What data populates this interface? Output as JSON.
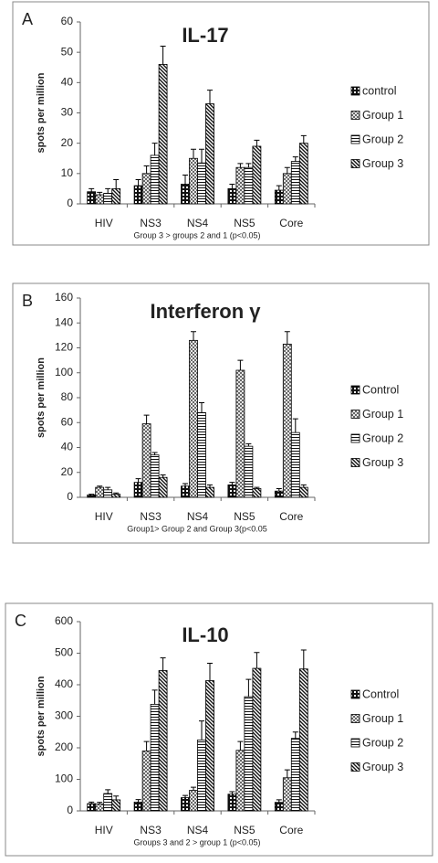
{
  "chart_data": [
    {
      "type": "bar",
      "panel": "A",
      "title": "IL-17",
      "y_label": "spots per million",
      "note": "Group 3 > groups 2 and 1 (p<0.05)",
      "categories": [
        "HIV",
        "NS3",
        "NS4",
        "NS5",
        "Core"
      ],
      "ylim": [
        0,
        60
      ],
      "yticks": [
        0,
        10,
        20,
        30,
        40,
        50,
        60
      ],
      "series": [
        {
          "name": "control",
          "color": "#000000",
          "values": [
            4,
            6,
            6.5,
            5,
            4.5
          ],
          "errors": [
            1,
            2,
            3,
            1.5,
            1.5
          ]
        },
        {
          "name": "Group 1",
          "color": "#000000",
          "values": [
            3,
            10,
            15,
            12,
            10
          ],
          "errors": [
            0.8,
            2.5,
            3,
            1.3,
            2
          ]
        },
        {
          "name": "Group 2",
          "color": "#000000",
          "values": [
            3.5,
            16,
            13.5,
            12,
            14
          ],
          "errors": [
            1.5,
            4,
            4.5,
            1.3,
            1.5
          ]
        },
        {
          "name": "Group 3",
          "color": "#000000",
          "values": [
            5,
            46,
            33,
            19,
            20
          ],
          "errors": [
            3,
            6,
            4.5,
            2,
            2.5
          ]
        }
      ]
    },
    {
      "type": "bar",
      "panel": "B",
      "title": "Interferon γ",
      "y_label": "spots per million",
      "note": "Group1> Group 2 and Group 3(p<0.05",
      "categories": [
        "HIV",
        "NS3",
        "NS4",
        "NS5",
        "Core"
      ],
      "ylim": [
        0,
        160
      ],
      "yticks": [
        0,
        20,
        40,
        60,
        80,
        100,
        120,
        140,
        160
      ],
      "series": [
        {
          "name": "Control",
          "color": "#000000",
          "values": [
            2,
            12,
            9,
            10,
            5
          ],
          "errors": [
            0.5,
            3,
            2,
            2,
            2
          ]
        },
        {
          "name": "Group 1",
          "color": "#000000",
          "values": [
            8,
            59,
            126,
            102,
            123
          ],
          "errors": [
            1,
            7,
            7,
            8,
            10
          ]
        },
        {
          "name": "Group 2",
          "color": "#000000",
          "values": [
            6,
            34,
            68,
            41,
            52
          ],
          "errors": [
            2,
            2,
            8,
            2,
            11
          ]
        },
        {
          "name": "Group 3",
          "color": "#000000",
          "values": [
            2.5,
            16,
            8,
            7,
            8
          ],
          "errors": [
            1,
            2,
            2,
            1,
            2
          ]
        }
      ]
    },
    {
      "type": "bar",
      "panel": "C",
      "title": "IL-10",
      "y_label": "spots per million",
      "note": "Groups 3 and 2 > group 1 (p<0.05)",
      "categories": [
        "HIV",
        "NS3",
        "NS4",
        "NS5",
        "Core"
      ],
      "ylim": [
        0,
        600
      ],
      "yticks": [
        0,
        100,
        200,
        300,
        400,
        500,
        600
      ],
      "series": [
        {
          "name": "Control",
          "color": "#000000",
          "values": [
            23,
            28,
            42,
            53,
            27
          ],
          "errors": [
            5,
            8,
            7,
            8,
            8
          ]
        },
        {
          "name": "Group 1",
          "color": "#000000",
          "values": [
            22,
            190,
            65,
            192,
            105
          ],
          "errors": [
            5,
            30,
            10,
            28,
            25
          ]
        },
        {
          "name": "Group 2",
          "color": "#000000",
          "values": [
            55,
            338,
            225,
            362,
            230
          ],
          "errors": [
            12,
            45,
            60,
            55,
            20
          ]
        },
        {
          "name": "Group 3",
          "color": "#000000",
          "values": [
            35,
            445,
            413,
            452,
            450
          ],
          "errors": [
            12,
            40,
            55,
            50,
            60
          ]
        }
      ]
    }
  ]
}
